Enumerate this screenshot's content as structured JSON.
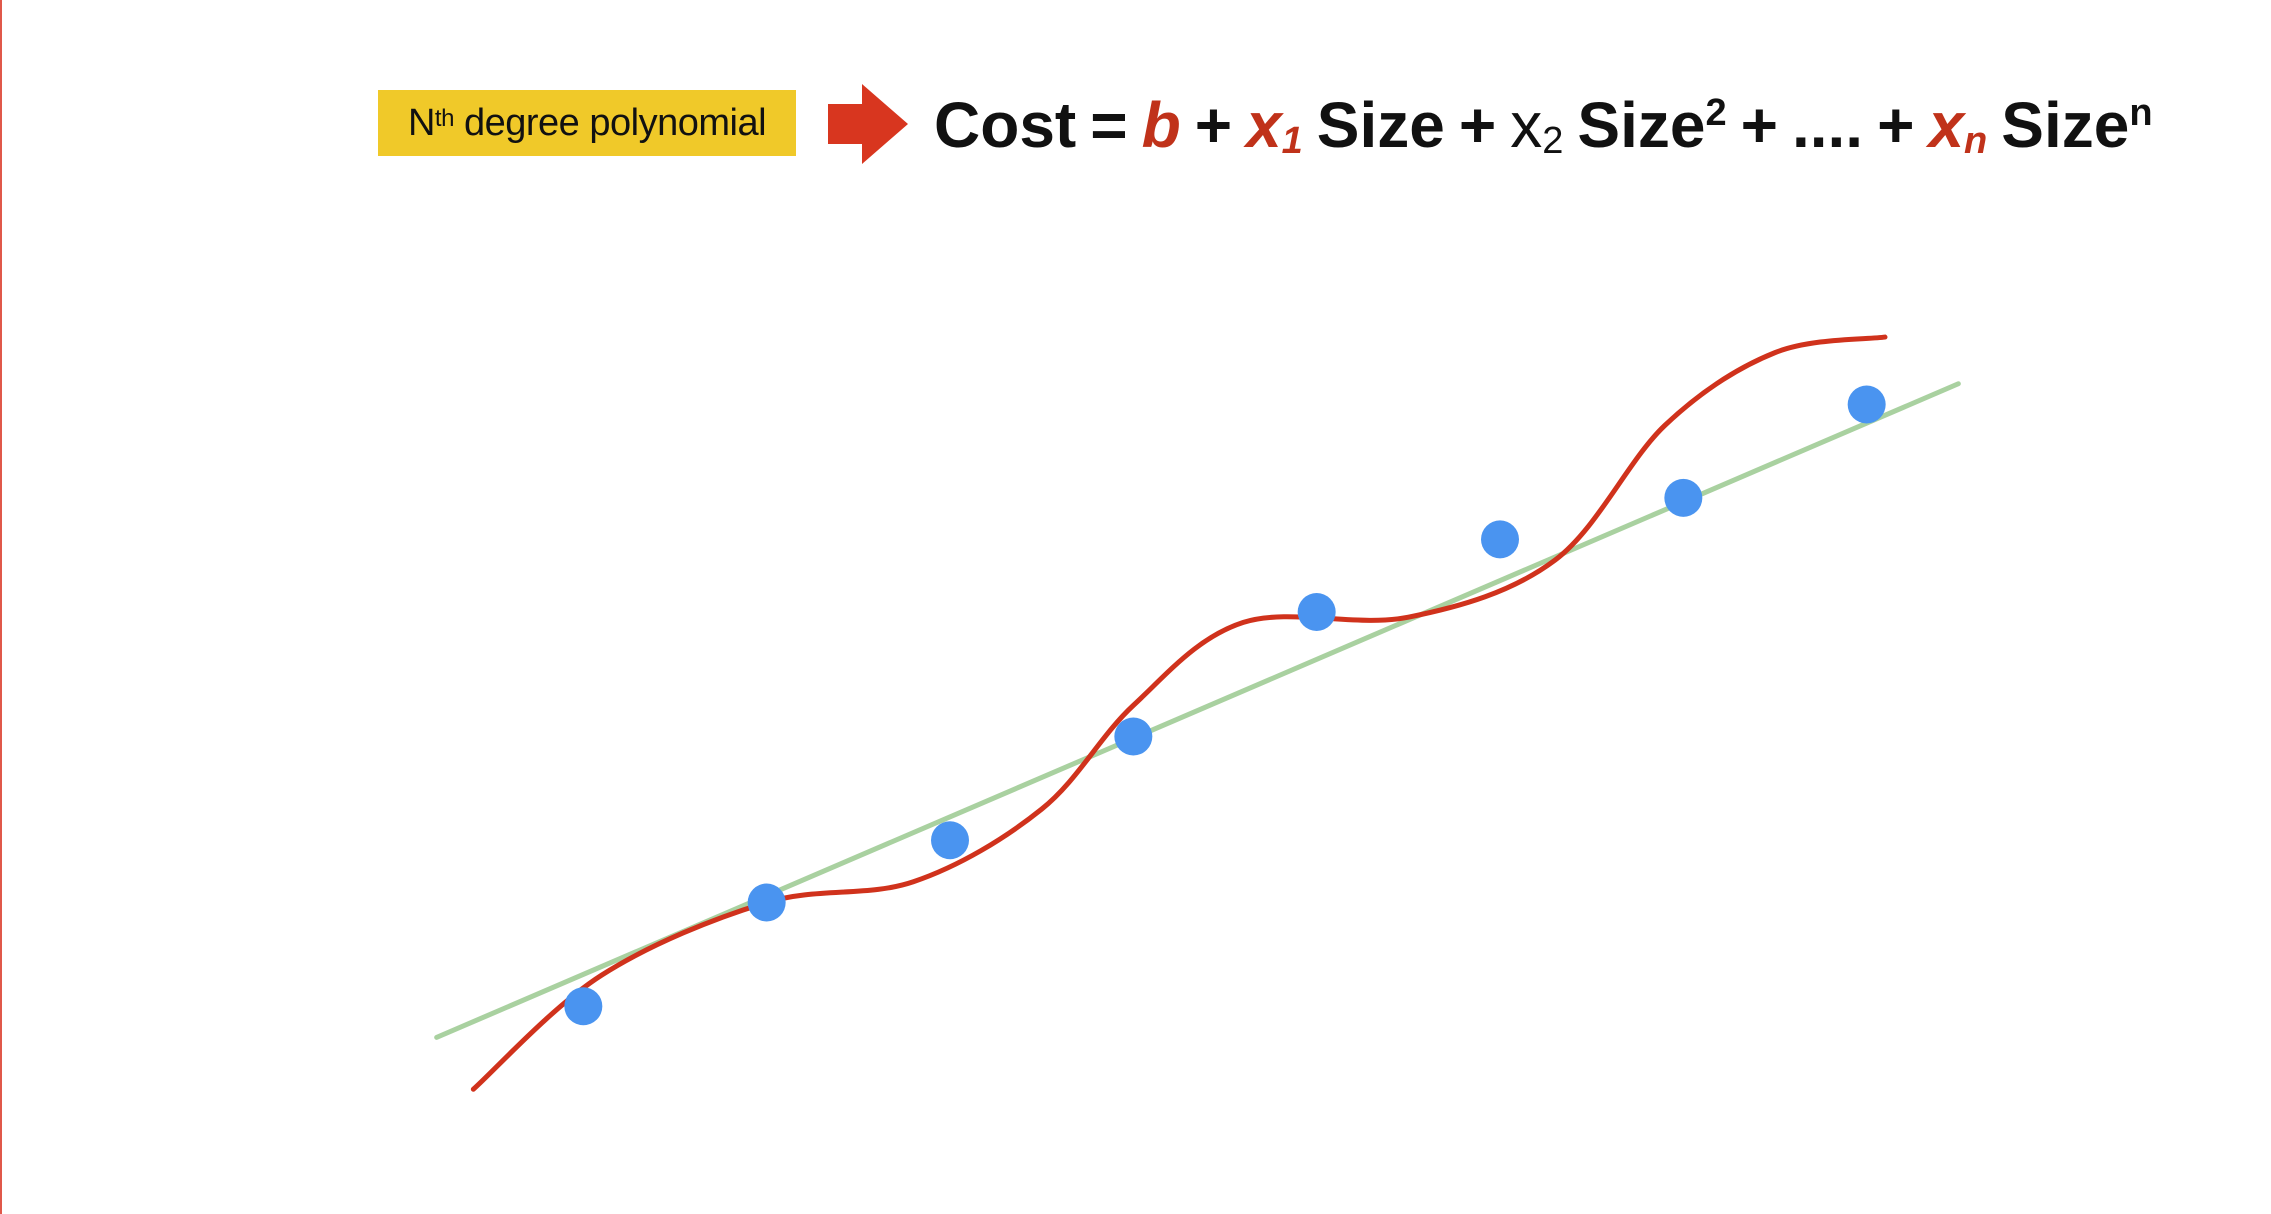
{
  "header": {
    "label_prefix": "N",
    "label_sup": "th",
    "label_suffix": " degree polynomial"
  },
  "equation": {
    "lhs": "Cost",
    "equals": "=",
    "b": "b",
    "plus": "+",
    "x1_var": "x",
    "x1_sub": "1",
    "size": "Size",
    "x2_var": "x",
    "x2_sub": "2",
    "sup2": "2",
    "dots": "....",
    "xn_var": "x",
    "xn_sub": "n",
    "supn": "n"
  },
  "colors": {
    "label_bg": "#f0c929",
    "arrow": "#d8361f",
    "coefficient": "#c0321a",
    "points": "#4a94f0",
    "linear_fit": "#a9d1a0",
    "poly_fit": "#d0321c"
  },
  "chart_data": {
    "type": "scatter",
    "series": [
      {
        "kind": "points",
        "values": [
          {
            "x": 1.0,
            "y": 1.0
          },
          {
            "x": 2.0,
            "y": 2.0
          },
          {
            "x": 3.0,
            "y": 2.6
          },
          {
            "x": 4.0,
            "y": 3.6
          },
          {
            "x": 5.0,
            "y": 4.8
          },
          {
            "x": 6.0,
            "y": 5.5
          },
          {
            "x": 7.0,
            "y": 5.9
          },
          {
            "x": 8.0,
            "y": 6.8
          }
        ]
      },
      {
        "kind": "linear-fit",
        "values": [
          {
            "x": 0.2,
            "y": 0.7
          },
          {
            "x": 8.5,
            "y": 7.0
          }
        ]
      },
      {
        "kind": "polynomial-fit",
        "values": [
          {
            "x": 0.4,
            "y": 0.2
          },
          {
            "x": 1.1,
            "y": 1.3
          },
          {
            "x": 2.0,
            "y": 2.0
          },
          {
            "x": 2.8,
            "y": 2.2
          },
          {
            "x": 3.5,
            "y": 2.9
          },
          {
            "x": 4.0,
            "y": 3.9
          },
          {
            "x": 4.6,
            "y": 4.7
          },
          {
            "x": 5.5,
            "y": 4.75
          },
          {
            "x": 6.3,
            "y": 5.3
          },
          {
            "x": 6.9,
            "y": 6.6
          },
          {
            "x": 7.5,
            "y": 7.3
          },
          {
            "x": 8.1,
            "y": 7.45
          }
        ]
      }
    ],
    "xlim": [
      0,
      9
    ],
    "ylim": [
      0,
      8
    ],
    "grid": false,
    "axes_visible": false
  }
}
